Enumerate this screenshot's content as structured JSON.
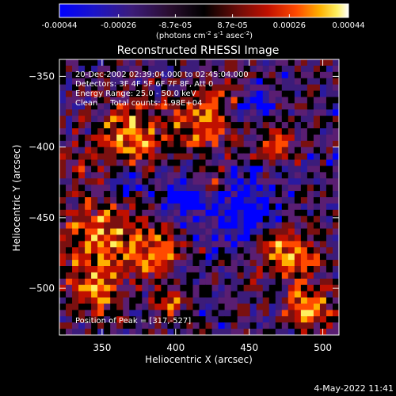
{
  "colorbar": {
    "tick_labels": [
      "-0.00044",
      "-0.00026",
      "-8.7e-05",
      "8.7e-05",
      "0.00026",
      "0.00044"
    ],
    "tick_values": [
      -0.00044,
      -0.00026,
      -8.7e-05,
      8.7e-05,
      0.00026,
      0.00044
    ],
    "range": [
      -0.00044,
      0.00044
    ],
    "units": {
      "photons": "photons cm",
      "cm_exp": "-2",
      "s": " s",
      "s_exp": "-1",
      "asec": " asec",
      "asec_exp": "-2"
    }
  },
  "chart_data": {
    "type": "heatmap",
    "title": "Reconstructed RHESSI Image",
    "xlabel": "Heliocentric X (arcsec)",
    "ylabel": "Heliocentric Y (arcsec)",
    "xlim": [
      321,
      511
    ],
    "ylim": [
      -533,
      -338
    ],
    "x_ticks": [
      350,
      400,
      450,
      500
    ],
    "y_ticks": [
      -350,
      -400,
      -450,
      -500
    ],
    "annotations": [
      "20-Dec-2002 02:39:04.000 to 02:45:04.000",
      "Detectors: 3F 4F 5F 6F 7F 8F, Att 0",
      "Energy Range: 25.0 - 50.0 keV",
      "Clean     Total counts: 1.98E+04"
    ],
    "peak_label": "Position of Peak = [317,-527]",
    "grid_cols": 44,
    "grid_rows": 44,
    "colormap": [
      "#0000ff",
      "#2a1aa0",
      "#3c1c7a",
      "#5a1e72",
      "#000000",
      "#7a1010",
      "#c01000",
      "#ff4a00",
      "#ffb000",
      "#fff060",
      "#ffffff"
    ]
  },
  "footer": {
    "timestamp": "4-May-2022 11:41"
  }
}
